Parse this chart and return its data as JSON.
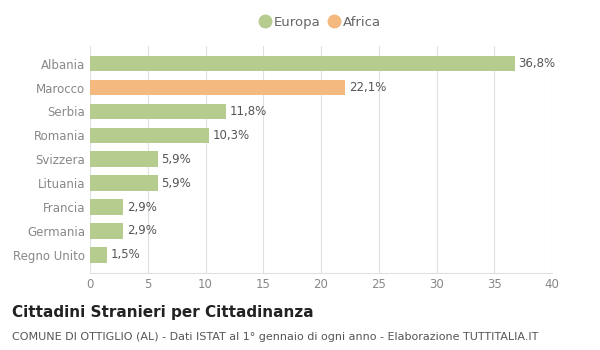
{
  "categories": [
    "Albania",
    "Marocco",
    "Serbia",
    "Romania",
    "Svizzera",
    "Lituania",
    "Francia",
    "Germania",
    "Regno Unito"
  ],
  "values": [
    36.8,
    22.1,
    11.8,
    10.3,
    5.9,
    5.9,
    2.9,
    2.9,
    1.5
  ],
  "labels": [
    "36,8%",
    "22,1%",
    "11,8%",
    "10,3%",
    "5,9%",
    "5,9%",
    "2,9%",
    "2,9%",
    "1,5%"
  ],
  "colors": [
    "#b5cc8e",
    "#f4b97f",
    "#b5cc8e",
    "#b5cc8e",
    "#b5cc8e",
    "#b5cc8e",
    "#b5cc8e",
    "#b5cc8e",
    "#b5cc8e"
  ],
  "legend_labels": [
    "Europa",
    "Africa"
  ],
  "legend_colors": [
    "#b5cc8e",
    "#f4b97f"
  ],
  "xlim": [
    0,
    40
  ],
  "xticks": [
    0,
    5,
    10,
    15,
    20,
    25,
    30,
    35,
    40
  ],
  "title": "Cittadini Stranieri per Cittadinanza",
  "subtitle": "COMUNE DI OTTIGLIO (AL) - Dati ISTAT al 1° gennaio di ogni anno - Elaborazione TUTTITALIA.IT",
  "bg_color": "#ffffff",
  "grid_color": "#e0e0e0",
  "bar_height": 0.65,
  "title_fontsize": 11,
  "subtitle_fontsize": 8,
  "label_fontsize": 8.5,
  "tick_fontsize": 8.5,
  "legend_fontsize": 9.5
}
